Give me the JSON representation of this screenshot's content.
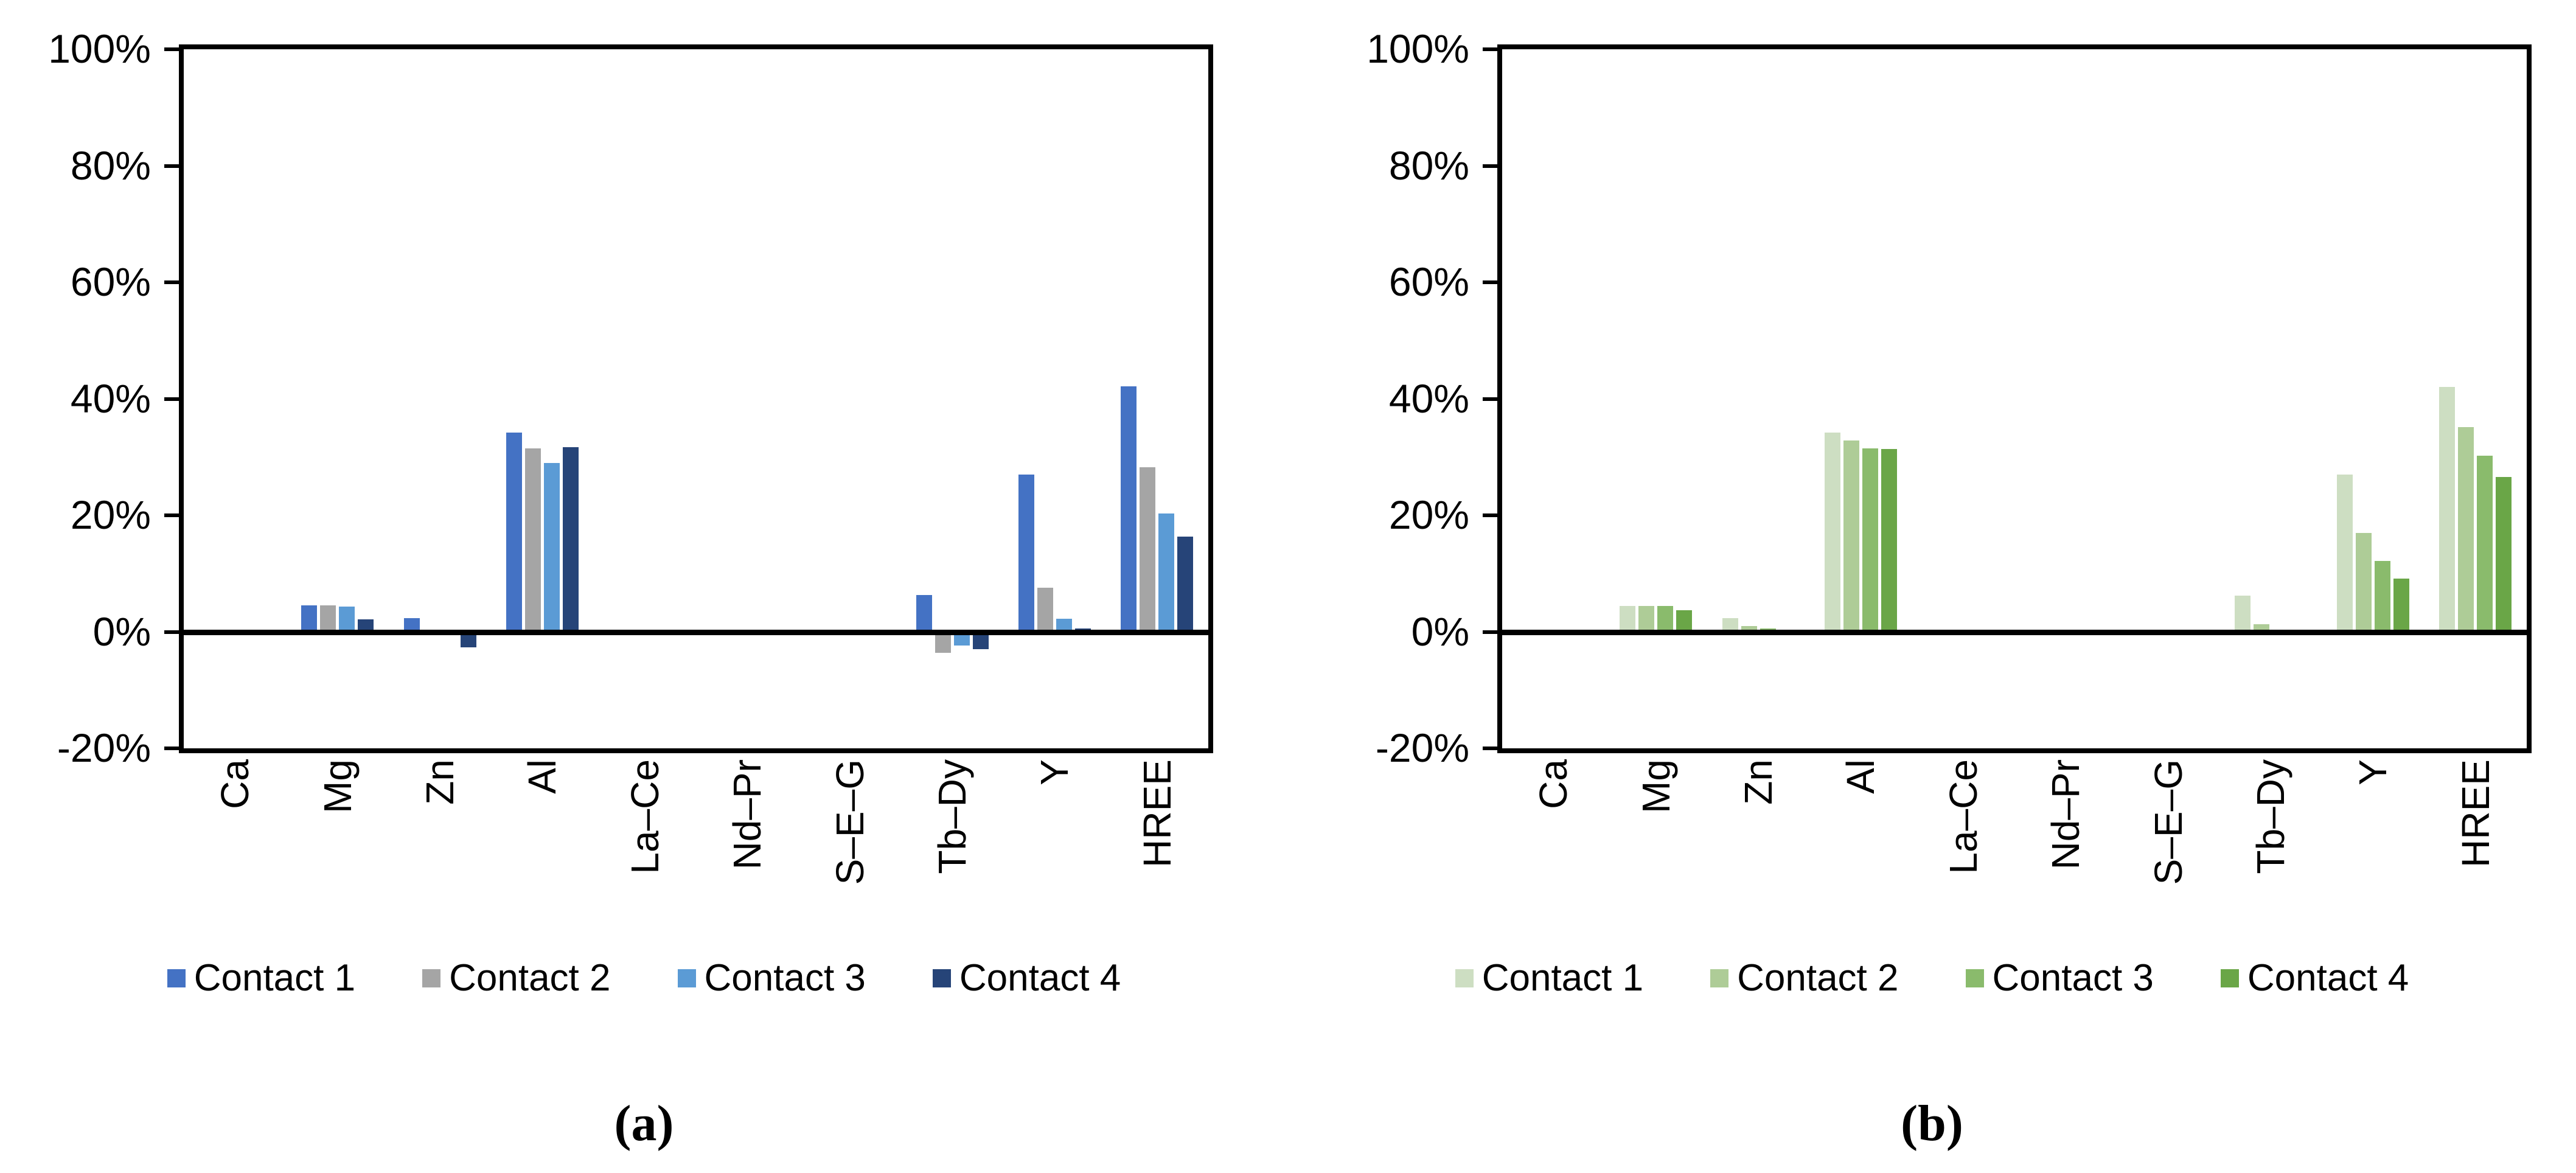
{
  "figure": {
    "background": "#ffffff",
    "axis_color": "#000000"
  },
  "chart_data": [
    {
      "type": "bar",
      "caption": "(a)",
      "title": "",
      "xlabel": "",
      "ylabel": "",
      "ylim": [
        -20,
        100
      ],
      "ytick_step": 20,
      "yticks": [
        100,
        80,
        60,
        40,
        20,
        0,
        -20
      ],
      "ytick_labels": [
        "100%",
        "80%",
        "60%",
        "40%",
        "20%",
        "0%",
        "-20%"
      ],
      "grid": false,
      "legend_position": "bottom",
      "categories": [
        "Ca",
        "Mg",
        "Zn",
        "Al",
        "La–Ce",
        "Nd–Pr",
        "S–E–G",
        "Tb–Dy",
        "Y",
        "HREE"
      ],
      "series": [
        {
          "name": "Contact 1",
          "color": "#4472C4",
          "values": [
            0,
            4.5,
            2.4,
            34.2,
            0,
            0,
            0,
            6.3,
            27.0,
            42.1
          ]
        },
        {
          "name": "Contact 2",
          "color": "#A5A5A5",
          "values": [
            0,
            4.5,
            -0.6,
            31.5,
            0,
            0,
            0,
            -3.6,
            7.6,
            28.3
          ]
        },
        {
          "name": "Contact 3",
          "color": "#5B9BD5",
          "values": [
            0,
            4.3,
            0,
            29.0,
            0,
            0,
            0,
            -2.3,
            2.2,
            20.3
          ]
        },
        {
          "name": "Contact 4",
          "color": "#264478",
          "values": [
            0,
            2.1,
            -2.7,
            31.7,
            0,
            0,
            0,
            -3.0,
            0.6,
            16.3
          ]
        }
      ]
    },
    {
      "type": "bar",
      "caption": "(b)",
      "title": "",
      "xlabel": "",
      "ylabel": "",
      "ylim": [
        -20,
        100
      ],
      "ytick_step": 20,
      "yticks": [
        100,
        80,
        60,
        40,
        20,
        0,
        -20
      ],
      "ytick_labels": [
        "100%",
        "80%",
        "60%",
        "40%",
        "20%",
        "0%",
        "-20%"
      ],
      "grid": false,
      "legend_position": "bottom",
      "categories": [
        "Ca",
        "Mg",
        "Zn",
        "Al",
        "La–Ce",
        "Nd–Pr",
        "S–E–G",
        "Tb–Dy",
        "Y",
        "HREE"
      ],
      "series": [
        {
          "name": "Contact 1",
          "color": "#CDDEC2",
          "values": [
            0,
            4.4,
            2.4,
            34.2,
            0,
            0,
            0,
            6.2,
            27.0,
            42.0
          ]
        },
        {
          "name": "Contact 2",
          "color": "#AECC97",
          "values": [
            0,
            4.4,
            1.0,
            32.8,
            0,
            0,
            0,
            1.3,
            17.0,
            35.1
          ]
        },
        {
          "name": "Contact 3",
          "color": "#8ABB6C",
          "values": [
            0,
            4.4,
            0.6,
            31.5,
            0,
            0,
            0,
            0,
            12.2,
            30.2
          ]
        },
        {
          "name": "Contact 4",
          "color": "#6AA647",
          "values": [
            0,
            3.7,
            0,
            31.4,
            0,
            0,
            0,
            0,
            9.1,
            26.6
          ]
        }
      ]
    }
  ]
}
